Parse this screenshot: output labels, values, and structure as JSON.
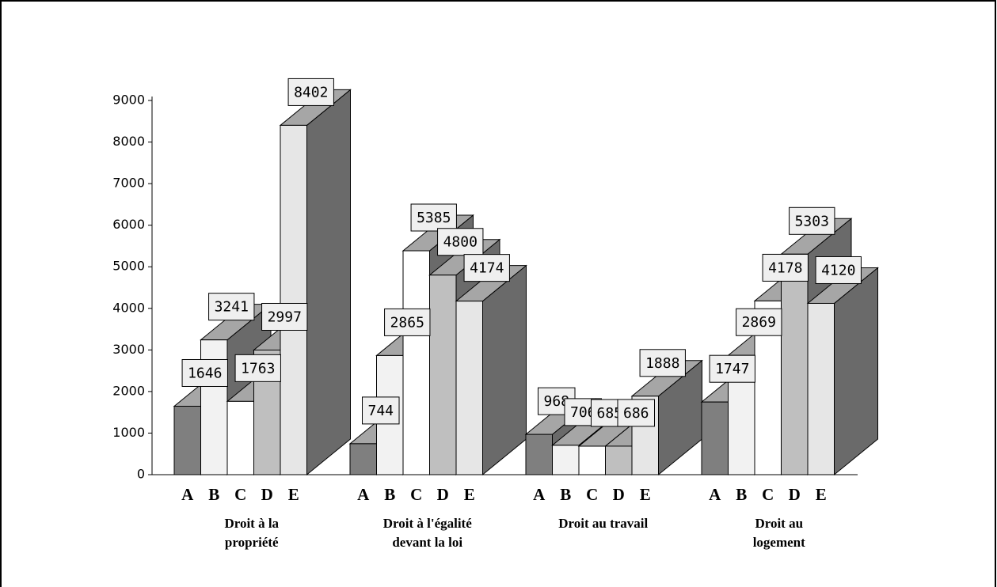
{
  "chart_data": {
    "type": "bar3d",
    "categories": [
      [
        "Droit à la",
        "propriété"
      ],
      [
        "Droit à l'égalité",
        "devant la loi"
      ],
      [
        "Droit au travail"
      ],
      [
        "Droit au",
        "logement"
      ]
    ],
    "series": [
      {
        "name": "A",
        "color": "#7f7f7f",
        "values": [
          1646,
          744,
          968,
          1747
        ]
      },
      {
        "name": "B",
        "color": "#f2f2f2",
        "values": [
          3241,
          2865,
          706,
          2869
        ]
      },
      {
        "name": "C",
        "color": "#ffffff",
        "values": [
          1763,
          5385,
          685,
          4178
        ]
      },
      {
        "name": "D",
        "color": "#bfbfbf",
        "values": [
          2997,
          4800,
          686,
          5303
        ]
      },
      {
        "name": "E",
        "color": "#e6e6e6",
        "values": [
          8402,
          4174,
          1888,
          4120
        ]
      }
    ],
    "ylim": [
      0,
      9000
    ],
    "yticks": [
      0,
      1000,
      2000,
      3000,
      4000,
      5000,
      6000,
      7000,
      8000,
      9000
    ]
  }
}
